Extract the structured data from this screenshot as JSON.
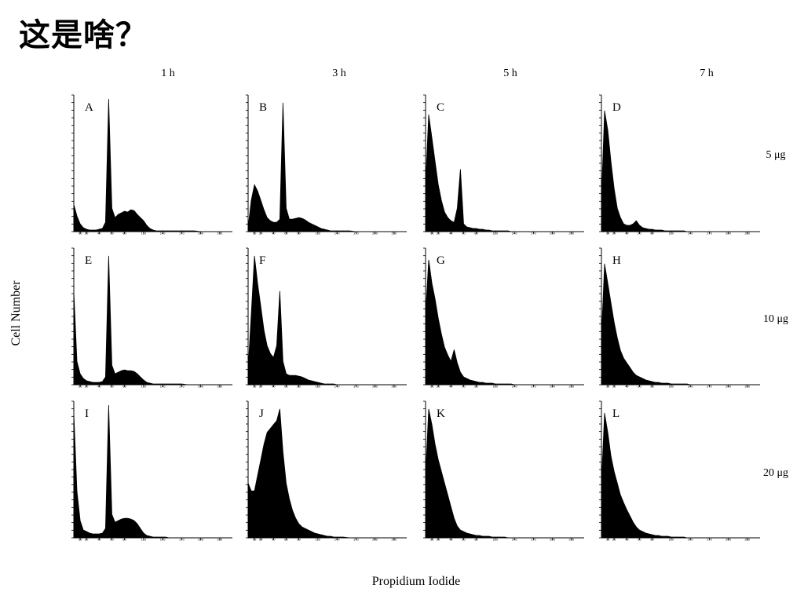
{
  "slide": {
    "title": "这是啥？"
  },
  "chart_data": {
    "type": "area",
    "xlabel": "Propidium Iodide",
    "ylabel": "Cell Number",
    "columns": [
      "1 h",
      "3 h",
      "5 h",
      "7 h"
    ],
    "rows": [
      "5 μg",
      "10 μg",
      "20 μg"
    ],
    "x_ticks": [
      10,
      20,
      40,
      60,
      80,
      110,
      140,
      170,
      200,
      230
    ],
    "xlim": [
      0,
      250
    ],
    "grid": false,
    "legend": "none",
    "panels": [
      {
        "label": "A",
        "row": 0,
        "col": 0,
        "x": [
          0,
          5,
          10,
          15,
          20,
          25,
          30,
          35,
          40,
          45,
          50,
          55,
          60,
          65,
          70,
          75,
          80,
          85,
          90,
          95,
          100,
          105,
          110,
          115,
          120,
          125,
          130,
          135,
          140,
          145,
          150,
          160,
          170,
          180,
          190,
          200,
          210,
          220,
          230,
          240,
          250
        ],
        "y": [
          35,
          20,
          10,
          5,
          3,
          2,
          2,
          2,
          3,
          4,
          12,
          170,
          30,
          18,
          22,
          24,
          26,
          25,
          28,
          27,
          22,
          18,
          14,
          8,
          4,
          2,
          1,
          1,
          1,
          1,
          1,
          1,
          1,
          1,
          1,
          0,
          0,
          0,
          0,
          0,
          0
        ]
      },
      {
        "label": "B",
        "row": 0,
        "col": 1,
        "x": [
          0,
          5,
          10,
          15,
          20,
          25,
          30,
          35,
          40,
          45,
          50,
          55,
          60,
          65,
          70,
          75,
          80,
          85,
          90,
          95,
          100,
          105,
          110,
          115,
          120,
          125,
          130,
          135,
          140,
          145,
          150,
          160,
          170,
          180,
          190,
          200,
          210,
          220,
          230,
          240,
          250
        ],
        "y": [
          5,
          40,
          60,
          52,
          40,
          28,
          18,
          14,
          12,
          12,
          16,
          165,
          30,
          16,
          16,
          17,
          18,
          17,
          15,
          12,
          10,
          8,
          6,
          4,
          3,
          2,
          1,
          1,
          1,
          1,
          1,
          1,
          0,
          0,
          0,
          0,
          0,
          0,
          0,
          0,
          0
        ]
      },
      {
        "label": "C",
        "row": 0,
        "col": 2,
        "x": [
          0,
          5,
          10,
          15,
          20,
          25,
          30,
          35,
          40,
          45,
          50,
          55,
          60,
          65,
          70,
          75,
          80,
          85,
          90,
          95,
          100,
          105,
          110,
          115,
          120,
          125,
          130,
          135,
          140,
          145,
          150,
          160,
          170,
          180,
          190,
          200,
          210,
          220,
          230,
          240,
          250
        ],
        "y": [
          60,
          150,
          120,
          90,
          60,
          40,
          25,
          18,
          14,
          12,
          30,
          80,
          10,
          6,
          5,
          4,
          4,
          3,
          3,
          2,
          2,
          1,
          1,
          1,
          1,
          1,
          1,
          0,
          0,
          0,
          0,
          0,
          0,
          0,
          0,
          0,
          0,
          0,
          0,
          0,
          0
        ]
      },
      {
        "label": "D",
        "row": 0,
        "col": 3,
        "x": [
          0,
          5,
          10,
          15,
          20,
          25,
          30,
          35,
          40,
          45,
          50,
          55,
          60,
          65,
          70,
          75,
          80,
          85,
          90,
          95,
          100,
          105,
          110,
          115,
          120,
          125,
          130,
          135,
          140,
          145,
          150,
          160,
          170,
          180,
          190,
          200,
          210,
          220,
          230,
          240,
          250
        ],
        "y": [
          40,
          155,
          130,
          90,
          55,
          30,
          18,
          10,
          8,
          8,
          10,
          14,
          8,
          5,
          4,
          3,
          3,
          2,
          2,
          2,
          1,
          1,
          1,
          1,
          1,
          1,
          1,
          0,
          0,
          0,
          0,
          0,
          0,
          0,
          0,
          0,
          0,
          0,
          0,
          0,
          0
        ]
      },
      {
        "label": "E",
        "row": 1,
        "col": 0,
        "x": [
          0,
          5,
          10,
          15,
          20,
          25,
          30,
          35,
          40,
          45,
          50,
          55,
          60,
          65,
          70,
          75,
          80,
          85,
          90,
          95,
          100,
          105,
          110,
          115,
          120,
          125,
          130,
          135,
          140,
          145,
          150,
          160,
          170,
          180,
          190,
          200,
          210,
          220,
          230,
          240,
          250
        ],
        "y": [
          120,
          30,
          14,
          8,
          5,
          4,
          3,
          3,
          3,
          4,
          10,
          165,
          25,
          14,
          16,
          18,
          19,
          18,
          18,
          17,
          14,
          10,
          6,
          3,
          2,
          1,
          1,
          1,
          1,
          1,
          1,
          1,
          1,
          0,
          0,
          0,
          0,
          0,
          0,
          0,
          0
        ]
      },
      {
        "label": "F",
        "row": 1,
        "col": 1,
        "x": [
          0,
          5,
          10,
          15,
          20,
          25,
          30,
          35,
          40,
          45,
          50,
          55,
          60,
          65,
          70,
          75,
          80,
          85,
          90,
          95,
          100,
          105,
          110,
          115,
          120,
          125,
          130,
          135,
          140,
          145,
          150,
          160,
          170,
          180,
          190,
          200,
          210,
          220,
          230,
          240,
          250
        ],
        "y": [
          20,
          90,
          165,
          130,
          100,
          70,
          50,
          40,
          35,
          50,
          120,
          30,
          14,
          12,
          12,
          12,
          11,
          10,
          8,
          6,
          5,
          4,
          3,
          2,
          1,
          1,
          1,
          1,
          0,
          0,
          0,
          0,
          0,
          0,
          0,
          0,
          0,
          0,
          0,
          0,
          0
        ]
      },
      {
        "label": "G",
        "row": 1,
        "col": 2,
        "x": [
          0,
          5,
          10,
          15,
          20,
          25,
          30,
          35,
          40,
          45,
          50,
          55,
          60,
          65,
          70,
          75,
          80,
          85,
          90,
          95,
          100,
          105,
          110,
          115,
          120,
          125,
          130,
          135,
          140,
          145,
          150,
          160,
          170,
          180,
          190,
          200,
          210,
          220,
          230,
          240,
          250
        ],
        "y": [
          90,
          160,
          130,
          110,
          85,
          65,
          48,
          38,
          30,
          45,
          28,
          16,
          10,
          8,
          6,
          5,
          4,
          3,
          3,
          2,
          2,
          2,
          1,
          1,
          1,
          1,
          1,
          1,
          0,
          0,
          0,
          0,
          0,
          0,
          0,
          0,
          0,
          0,
          0,
          0,
          0
        ]
      },
      {
        "label": "H",
        "row": 1,
        "col": 3,
        "x": [
          0,
          5,
          10,
          15,
          20,
          25,
          30,
          35,
          40,
          45,
          50,
          55,
          60,
          65,
          70,
          75,
          80,
          85,
          90,
          95,
          100,
          105,
          110,
          115,
          120,
          125,
          130,
          135,
          140,
          145,
          150,
          160,
          170,
          180,
          190,
          200,
          210,
          220,
          230,
          240,
          250
        ],
        "y": [
          60,
          155,
          130,
          105,
          80,
          60,
          44,
          34,
          28,
          22,
          16,
          12,
          10,
          8,
          6,
          5,
          4,
          3,
          3,
          2,
          2,
          2,
          1,
          1,
          1,
          1,
          1,
          1,
          0,
          0,
          0,
          0,
          0,
          0,
          0,
          0,
          0,
          0,
          0,
          0,
          0
        ]
      },
      {
        "label": "I",
        "row": 2,
        "col": 0,
        "x": [
          0,
          5,
          10,
          15,
          20,
          25,
          30,
          35,
          40,
          45,
          50,
          55,
          60,
          65,
          70,
          75,
          80,
          85,
          90,
          95,
          100,
          105,
          110,
          115,
          120,
          125,
          130,
          135,
          140,
          145,
          150,
          160,
          170,
          180,
          190,
          200,
          210,
          220,
          230,
          240,
          250
        ],
        "y": [
          160,
          60,
          22,
          10,
          8,
          6,
          5,
          5,
          5,
          6,
          12,
          170,
          30,
          20,
          22,
          24,
          25,
          25,
          24,
          22,
          18,
          12,
          6,
          3,
          2,
          1,
          1,
          1,
          1,
          1,
          0,
          0,
          0,
          0,
          0,
          0,
          0,
          0,
          0,
          0,
          0
        ]
      },
      {
        "label": "J",
        "row": 2,
        "col": 1,
        "x": [
          0,
          5,
          10,
          15,
          20,
          25,
          30,
          35,
          40,
          45,
          50,
          55,
          60,
          65,
          70,
          75,
          80,
          85,
          90,
          95,
          100,
          105,
          110,
          115,
          120,
          125,
          130,
          135,
          140,
          145,
          150,
          160,
          170,
          180,
          190,
          200,
          210,
          220,
          230,
          240,
          250
        ],
        "y": [
          70,
          60,
          60,
          80,
          100,
          120,
          135,
          140,
          145,
          150,
          165,
          110,
          70,
          50,
          35,
          25,
          18,
          14,
          12,
          10,
          8,
          6,
          5,
          4,
          3,
          2,
          2,
          1,
          1,
          1,
          1,
          0,
          0,
          0,
          0,
          0,
          0,
          0,
          0,
          0,
          0
        ]
      },
      {
        "label": "K",
        "row": 2,
        "col": 2,
        "x": [
          0,
          5,
          10,
          15,
          20,
          25,
          30,
          35,
          40,
          45,
          50,
          55,
          60,
          65,
          70,
          75,
          80,
          85,
          90,
          95,
          100,
          105,
          110,
          115,
          120,
          125,
          130,
          135,
          140,
          145,
          150,
          160,
          170,
          180,
          190,
          200,
          210,
          220,
          230,
          240,
          250
        ],
        "y": [
          80,
          165,
          145,
          120,
          100,
          85,
          70,
          55,
          40,
          25,
          15,
          10,
          8,
          6,
          5,
          4,
          3,
          3,
          2,
          2,
          2,
          1,
          1,
          1,
          1,
          1,
          0,
          0,
          0,
          0,
          0,
          0,
          0,
          0,
          0,
          0,
          0,
          0,
          0,
          0,
          0
        ]
      },
      {
        "label": "L",
        "row": 2,
        "col": 3,
        "x": [
          0,
          5,
          10,
          15,
          20,
          25,
          30,
          35,
          40,
          45,
          50,
          55,
          60,
          65,
          70,
          75,
          80,
          85,
          90,
          95,
          100,
          105,
          110,
          115,
          120,
          125,
          130,
          135,
          140,
          145,
          150,
          160,
          170,
          180,
          190,
          200,
          210,
          220,
          230,
          240,
          250
        ],
        "y": [
          70,
          160,
          135,
          105,
          85,
          70,
          55,
          45,
          36,
          28,
          20,
          14,
          10,
          8,
          6,
          5,
          4,
          3,
          3,
          2,
          2,
          2,
          1,
          1,
          1,
          1,
          1,
          0,
          0,
          0,
          0,
          0,
          0,
          0,
          0,
          0,
          0,
          0,
          0,
          0,
          0
        ]
      }
    ]
  }
}
